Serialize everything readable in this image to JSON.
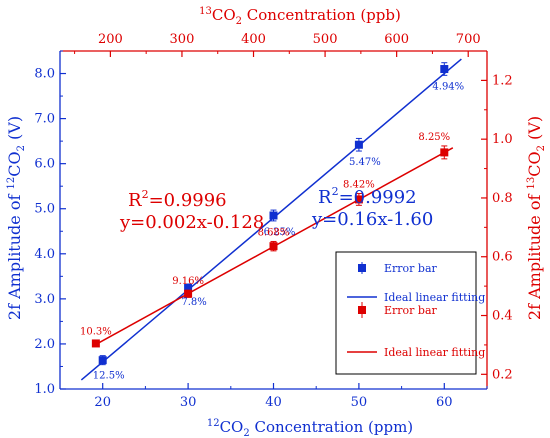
{
  "chart_data": {
    "type": "scatter",
    "bottom_axis": {
      "label_sup": "12",
      "label_main": "CO",
      "label_sub": "2",
      "label_rest": " Concentration (ppm)",
      "range": [
        15,
        65
      ],
      "ticks": [
        "20",
        "30",
        "40",
        "50",
        "60"
      ],
      "color": "#1030d0"
    },
    "top_axis": {
      "label_sup": "13",
      "label_main": "CO",
      "label_sub": "2",
      "label_rest": " Concentration (ppb)",
      "ticks": [
        "200",
        "300",
        "400",
        "500",
        "600",
        "700"
      ],
      "color": "#dd0000"
    },
    "left_axis": {
      "label_pre": "2f Amplitude of ",
      "label_sup": "12",
      "label_main": "CO",
      "label_sub": "2",
      "label_rest": " (V)",
      "range": [
        1.0,
        8.5
      ],
      "ticks": [
        "1.0",
        "2.0",
        "3.0",
        "4.0",
        "5.0",
        "6.0",
        "7.0",
        "8.0"
      ],
      "color": "#1030d0"
    },
    "right_axis": {
      "label_pre": "2f Amplitude of ",
      "label_sup": "13",
      "label_main": "CO",
      "label_sub": "2",
      "label_rest": " (V)",
      "range": [
        0.15,
        1.3
      ],
      "ticks": [
        "0.2",
        "0.4",
        "0.6",
        "0.8",
        "1.0",
        "1.2"
      ],
      "color": "#dd0000"
    },
    "series": [
      {
        "name": "Error bar",
        "color": "#1030d0",
        "marker": "square",
        "x": [
          20,
          30,
          40,
          50,
          60
        ],
        "y": [
          1.64,
          3.25,
          4.85,
          6.42,
          8.1
        ],
        "err": [
          0.1,
          0.08,
          0.12,
          0.14,
          0.14
        ],
        "labels": [
          "12.5%",
          "7.8%",
          "6.25%",
          "5.47%",
          "4.94%"
        ],
        "fit": {
          "name": "Ideal linear fitting",
          "slope": 0.16,
          "intercept": -1.6,
          "x_range": [
            17.5,
            62
          ]
        },
        "axis": "left"
      },
      {
        "name": "Error bar",
        "color": "#dd0000",
        "marker": "square",
        "x": [
          19.2,
          30,
          40,
          50,
          60
        ],
        "y": [
          0.305,
          0.474,
          0.636,
          0.795,
          0.955
        ],
        "err": [
          0.01,
          0.012,
          0.016,
          0.02,
          0.022
        ],
        "labels": [
          "10.3%",
          "9.16%",
          "8.68%",
          "8.42%",
          "8.25%"
        ],
        "fit": {
          "name": "Ideal linear fitting",
          "slope": 0.016,
          "intercept": -0.0055,
          "x_range": [
            19.2,
            61
          ]
        },
        "axis": "right"
      }
    ],
    "annotations": {
      "red_r2_main": "R",
      "red_r2_sup": "2",
      "red_r2_value": "=0.9996",
      "red_eq": "y=0.002x-0.128",
      "blue_r2_main": "R",
      "blue_r2_sup": "2",
      "blue_r2_value": "=0.9992",
      "blue_eq": "y=0.16x-1.60"
    },
    "legend": {
      "placement": "bottom-right",
      "items": [
        {
          "label": "Error bar",
          "kind": "marker",
          "color": "#1030d0"
        },
        {
          "label": "Ideal linear fitting",
          "kind": "line",
          "color": "#1030d0"
        },
        {
          "label": "Error bar",
          "kind": "marker",
          "color": "#dd0000"
        },
        {
          "label": "Ideal linear fitting",
          "kind": "line",
          "color": "#dd0000"
        }
      ]
    }
  }
}
